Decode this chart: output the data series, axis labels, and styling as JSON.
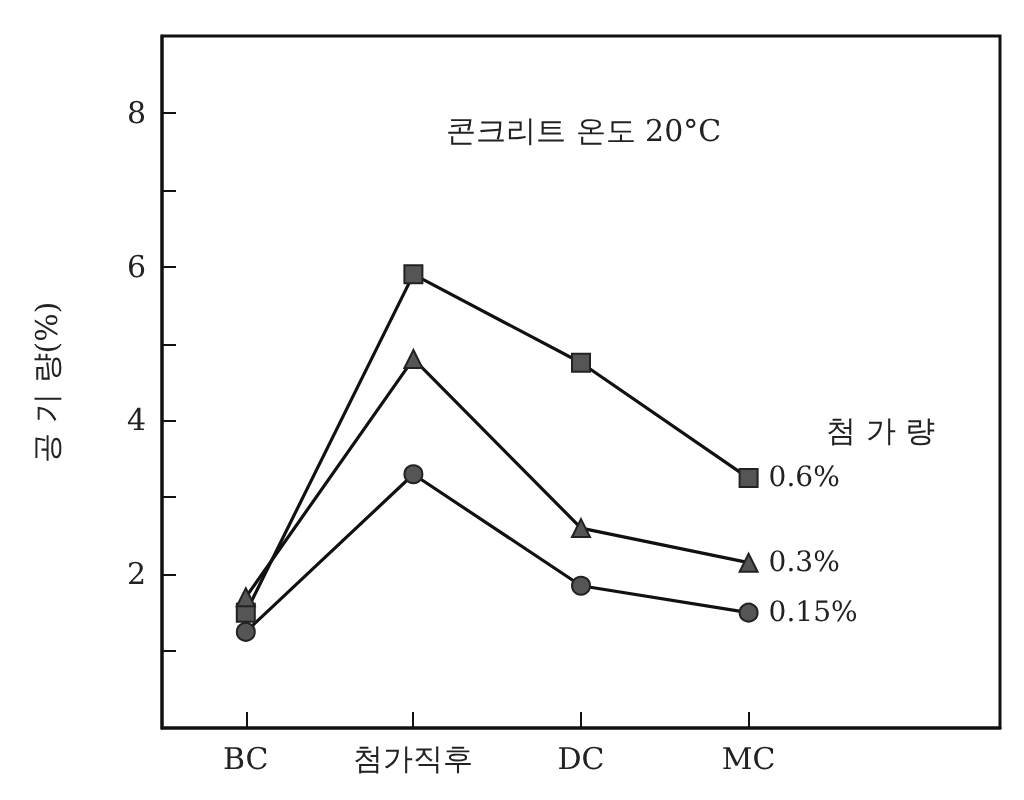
{
  "chart_data": {
    "type": "line",
    "ylabel": "공 기 량(%)",
    "legend_title": "첨 가 량",
    "annotations": [
      "콘크리트 온도 20°C"
    ],
    "categories": [
      "BC",
      "첨가직후",
      "DC",
      "MC"
    ],
    "ylim": [
      0,
      9
    ],
    "yticks": [
      {
        "value": 1,
        "label": null
      },
      2,
      {
        "value": 3,
        "label": null
      },
      4,
      {
        "value": 5,
        "label": null
      },
      6,
      {
        "value": 7,
        "label": null
      },
      8
    ],
    "grid": false,
    "legend": false,
    "series": [
      {
        "name": "0.6%",
        "color": "#555555",
        "marker": "square",
        "values": [
          1.5,
          5.9,
          4.75,
          3.25
        ]
      },
      {
        "name": "0.3%",
        "color": "#555555",
        "marker": "triangle",
        "values": [
          1.7,
          4.8,
          2.6,
          2.15
        ]
      },
      {
        "name": "0.15%",
        "color": "#555555",
        "marker": "circle",
        "values": [
          1.25,
          3.3,
          1.85,
          1.5
        ]
      }
    ]
  }
}
